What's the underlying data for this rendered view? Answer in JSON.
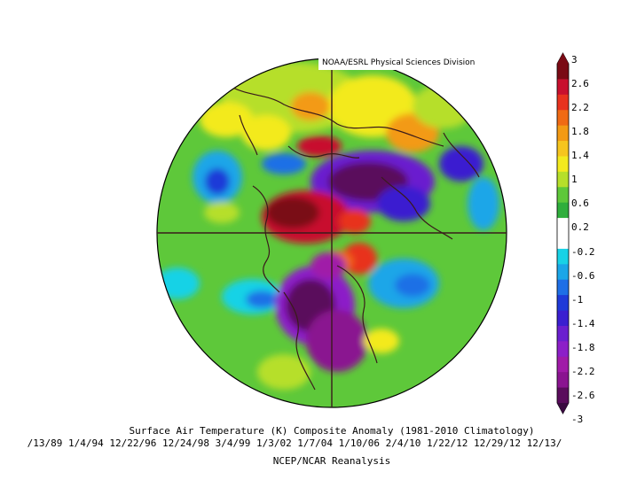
{
  "figure": {
    "credit": "NOAA/ESRL Physical Sciences Division",
    "title": "Surface Air Temperature (K) Composite Anomaly (1981-2010 Climatology)",
    "dates": "/13/89 1/4/94 12/22/96 12/24/98 3/4/99 1/3/02 1/7/04 1/10/06 2/4/10 1/22/12 12/29/12 12/13/",
    "source": "NCEP/NCAR Reanalysis"
  },
  "colorbar": {
    "labels": [
      "3",
      "2.6",
      "2.2",
      "1.8",
      "1.4",
      "1",
      "0.6",
      "0.2",
      "-0.2",
      "-0.6",
      "-1",
      "-1.4",
      "-1.8",
      "-2.2",
      "-2.6",
      "-3"
    ],
    "colors": [
      "#7a0a14",
      "#c8102e",
      "#e8321e",
      "#f06a14",
      "#f39a14",
      "#f6c51e",
      "#f3ea1e",
      "#b6df2a",
      "#5ec83a",
      "#2fae3c",
      "#ffffff",
      "#ffffff",
      "#18d2e6",
      "#1aa6e8",
      "#1e6fe6",
      "#1f3ad8",
      "#3a1fd0",
      "#6a1fcf",
      "#8c1fc8",
      "#a01ba8",
      "#8a1490",
      "#5a0c5c"
    ]
  },
  "colors": {
    "warm_strong": "#c8102e",
    "warm": "#f06a14",
    "warm_light": "#f3ea1e",
    "neutral_green": "#5ec83a",
    "cool_light": "#18d2e6",
    "cool": "#1e6fe6",
    "cold": "#3a1fd0",
    "cold_strong": "#5a0c5c"
  }
}
